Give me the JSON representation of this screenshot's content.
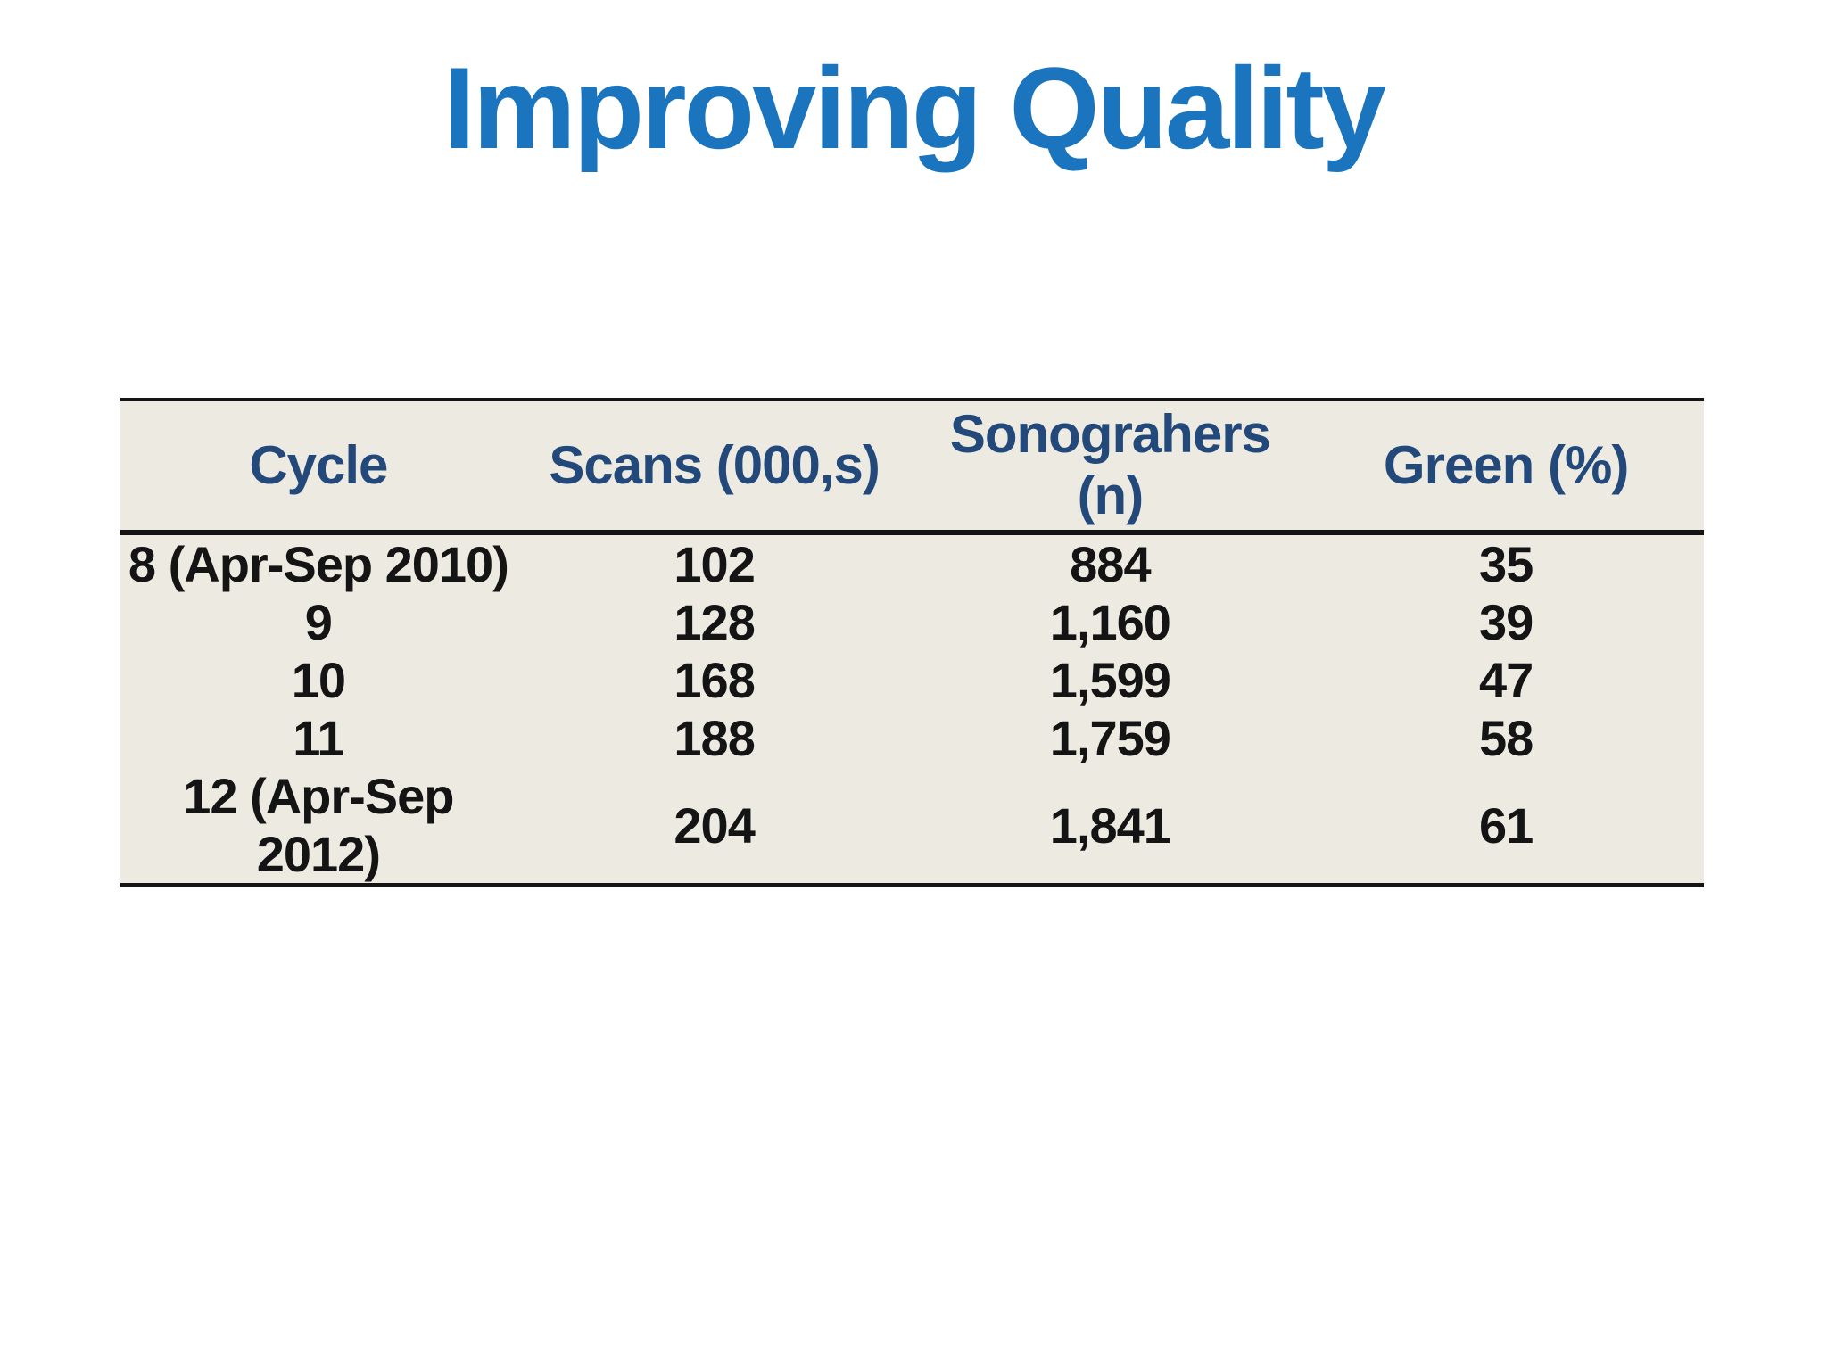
{
  "slide": {
    "title": "Improving Quality"
  },
  "table": {
    "columns": [
      "Cycle",
      "Scans (000,s)",
      "Sonograhers (n)",
      "Green (%)"
    ],
    "rows": [
      [
        "8 (Apr-Sep 2010)",
        "102",
        "884",
        "35"
      ],
      [
        "9",
        "128",
        "1,160",
        "39"
      ],
      [
        "10",
        "168",
        "1,599",
        "47"
      ],
      [
        "11",
        "188",
        "1,759",
        "58"
      ],
      [
        "12 (Apr-Sep 2012)",
        "204",
        "1,841",
        "61"
      ]
    ],
    "colors": {
      "title_blue": "#1b74be",
      "header_navy": "#23497b",
      "table_background": "#edeae2",
      "body_text": "#141414",
      "rule_black": "#141414"
    }
  }
}
